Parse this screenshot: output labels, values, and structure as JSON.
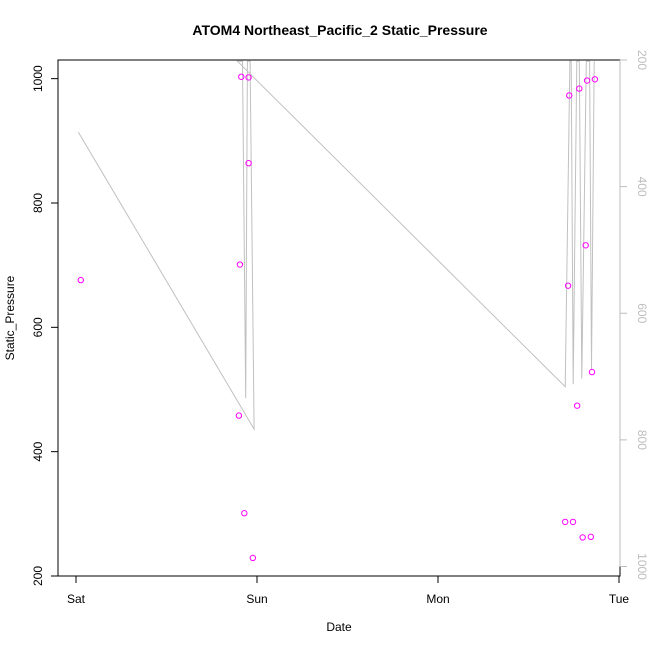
{
  "chart_data": {
    "type": "scatter",
    "title": "ATOM4 Northeast_Pacific_2 Static_Pressure",
    "xlabel": "Date",
    "ylabel": "Static_Pressure",
    "x_ticks": [
      {
        "label": "Sat",
        "value": "Sat 00:00"
      },
      {
        "label": "Sun",
        "value": "Sun 00:00"
      },
      {
        "label": "Mon",
        "value": "Mon 00:00"
      },
      {
        "label": "Tue",
        "value": "Tue 00:00"
      }
    ],
    "ylim": [
      200,
      1030
    ],
    "y_ticks": [
      200,
      400,
      600,
      800,
      1000
    ],
    "right_axis": {
      "ticks": [
        200,
        400,
        600,
        800,
        1000
      ],
      "reversed": true,
      "range": [
        200,
        1015
      ],
      "color": "#bdbdbd"
    },
    "series": [
      {
        "type": "scatter",
        "color": "#ff00ff",
        "marker": "open-circle",
        "points": [
          {
            "x": "Sat 00:38",
            "y": 676
          },
          {
            "x": "Sat 21:36",
            "y": 458
          },
          {
            "x": "Sat 21:44",
            "y": 701
          },
          {
            "x": "Sat 21:55",
            "y": 1003
          },
          {
            "x": "Sat 22:19",
            "y": 301
          },
          {
            "x": "Sat 22:53",
            "y": 1002
          },
          {
            "x": "Sat 22:53",
            "y": 864
          },
          {
            "x": "Sat 23:27",
            "y": 229
          },
          {
            "x": "Mon 16:52",
            "y": 287
          },
          {
            "x": "Mon 17:15",
            "y": 667
          },
          {
            "x": "Mon 17:24",
            "y": 973
          },
          {
            "x": "Mon 17:54",
            "y": 287
          },
          {
            "x": "Mon 18:27",
            "y": 474
          },
          {
            "x": "Mon 18:44",
            "y": 984
          },
          {
            "x": "Mon 19:11",
            "y": 262
          },
          {
            "x": "Mon 19:35",
            "y": 732
          },
          {
            "x": "Mon 19:46",
            "y": 997
          },
          {
            "x": "Mon 20:16",
            "y": 263
          },
          {
            "x": "Mon 20:25",
            "y": 528
          },
          {
            "x": "Mon 20:48",
            "y": 999
          }
        ]
      },
      {
        "type": "line",
        "color": "#c0c0c0",
        "axis": "right",
        "points": [
          {
            "x": "Sat 00:19",
            "y": 314
          },
          {
            "x": "Sat 23:37",
            "y": 783
          },
          {
            "x": "Sat 23:05",
            "y": 202
          },
          {
            "x": "Sat 22:44",
            "y": 202
          },
          {
            "x": "Sat 22:30",
            "y": 734
          },
          {
            "x": "Sat 22:05",
            "y": 202
          },
          {
            "x": "Sat 21:25",
            "y": 202
          },
          {
            "x": "Mon 16:52",
            "y": 716
          },
          {
            "x": "Mon 17:29",
            "y": 202
          },
          {
            "x": "Mon 17:40",
            "y": 202
          },
          {
            "x": "Mon 17:56",
            "y": 712
          },
          {
            "x": "Mon 18:24",
            "y": 202
          },
          {
            "x": "Mon 18:44",
            "y": 202
          },
          {
            "x": "Mon 19:04",
            "y": 703
          },
          {
            "x": "Mon 19:40",
            "y": 202
          },
          {
            "x": "Mon 20:06",
            "y": 202
          },
          {
            "x": "Mon 20:21",
            "y": 689
          },
          {
            "x": "Mon 20:43",
            "y": 202
          }
        ]
      }
    ]
  }
}
